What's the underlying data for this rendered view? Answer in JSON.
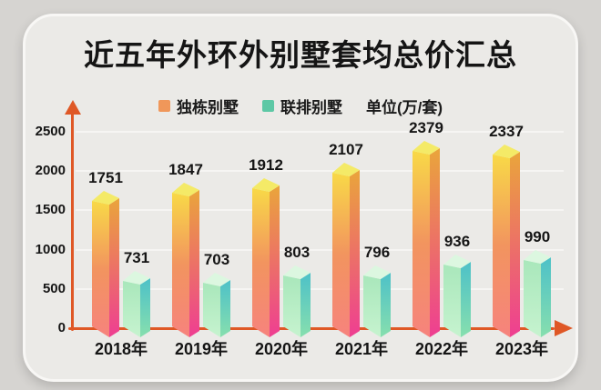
{
  "title": "近五年外环外别墅套均总价汇总",
  "legend": {
    "detached": "独栋别墅",
    "townhouse": "联排别墅",
    "unit": "单位(万/套)"
  },
  "chart_data": {
    "type": "bar",
    "categories": [
      "2018年",
      "2019年",
      "2020年",
      "2021年",
      "2022年",
      "2023年"
    ],
    "series": [
      {
        "name": "独栋别墅",
        "values": [
          1751,
          1847,
          1912,
          2107,
          2379,
          2337
        ]
      },
      {
        "name": "联排别墅",
        "values": [
          731,
          703,
          803,
          796,
          936,
          990
        ]
      }
    ],
    "title": "近五年外环外别墅套均总价汇总",
    "xlabel": "",
    "ylabel": "",
    "unit_label": "单位(万/套)",
    "y_ticks": [
      0,
      500,
      1000,
      1500,
      2000,
      2500
    ],
    "ylim": [
      0,
      2500
    ],
    "grid": true,
    "legend_position": "top",
    "style": "3d-prism-bars"
  },
  "colors": {
    "page_bg": "#d6d4d1",
    "card_bg": "#ebeae7",
    "text": "#151515",
    "axis": "#df5826",
    "gridline": "#f6f5f3",
    "detached": {
      "swatch": "#f0975a",
      "top": "#f4ea67",
      "left": [
        "#f8d947",
        "#f2945f",
        "#f6837d"
      ],
      "right": [
        "#eaa53b",
        "#ee3e92"
      ]
    },
    "townhouse": {
      "swatch": "#5dc8a5",
      "top": "#dcf7e0",
      "left": [
        "#a9e7bb",
        "#c6f3cf"
      ],
      "right": [
        "#4dc1c8",
        "#87dfae"
      ]
    }
  }
}
